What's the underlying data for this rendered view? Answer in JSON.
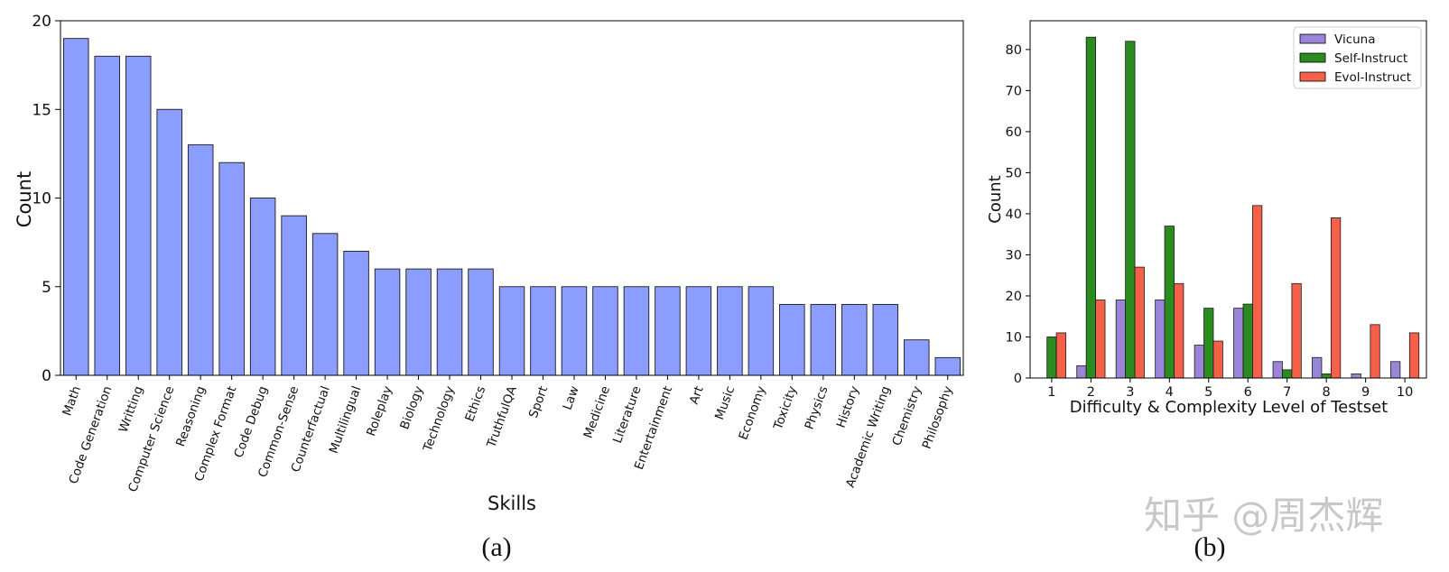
{
  "chart_data": [
    {
      "type": "bar",
      "caption": "(a)",
      "categories": [
        "Math",
        "Code Generation",
        "Writting",
        "Computer Science",
        "Reasoning",
        "Complex Format",
        "Code Debug",
        "Common-Sense",
        "Counterfactual",
        "Multilingual",
        "Roleplay",
        "Biology",
        "Technology",
        "Ethics",
        "TruthfulQA",
        "Sport",
        "Law",
        "Medicine",
        "Literature",
        "Entertainment",
        "Art",
        "Music",
        "Economy",
        "Toxicity",
        "Physics",
        "History",
        "Academic Writing",
        "Chemistry",
        "Philosophy"
      ],
      "values": [
        19,
        18,
        18,
        15,
        13,
        12,
        10,
        9,
        8,
        7,
        6,
        6,
        6,
        6,
        5,
        5,
        5,
        5,
        5,
        5,
        5,
        5,
        5,
        4,
        4,
        4,
        4,
        2,
        1
      ],
      "color": "#8b9dff",
      "xlabel": "Skills",
      "ylabel": "Count",
      "ylim": [
        0,
        20
      ],
      "yticks": [
        0,
        5,
        10,
        15,
        20
      ],
      "grid": false
    },
    {
      "type": "bar",
      "caption": "(b)",
      "categories": [
        "1",
        "2",
        "3",
        "4",
        "5",
        "6",
        "7",
        "8",
        "9",
        "10"
      ],
      "series": [
        {
          "name": "Vicuna",
          "color": "#9a85d8",
          "values": [
            0,
            3,
            19,
            19,
            8,
            17,
            4,
            5,
            1,
            4
          ]
        },
        {
          "name": "Self-Instruct",
          "color": "#2a8c1f",
          "values": [
            10,
            83,
            82,
            37,
            17,
            18,
            2,
            1,
            0,
            0
          ]
        },
        {
          "name": "Evol-Instruct",
          "color": "#f5604a",
          "values": [
            11,
            19,
            27,
            23,
            9,
            42,
            23,
            39,
            13,
            11
          ]
        }
      ],
      "xlabel": "Difficulty & Complexity Level of Testset",
      "ylabel": "Count",
      "ylim": [
        0,
        87
      ],
      "yticks": [
        0,
        10,
        20,
        30,
        40,
        50,
        60,
        70,
        80
      ],
      "legend": "top-right",
      "grid": false
    }
  ],
  "watermark": "知乎 @周杰辉"
}
